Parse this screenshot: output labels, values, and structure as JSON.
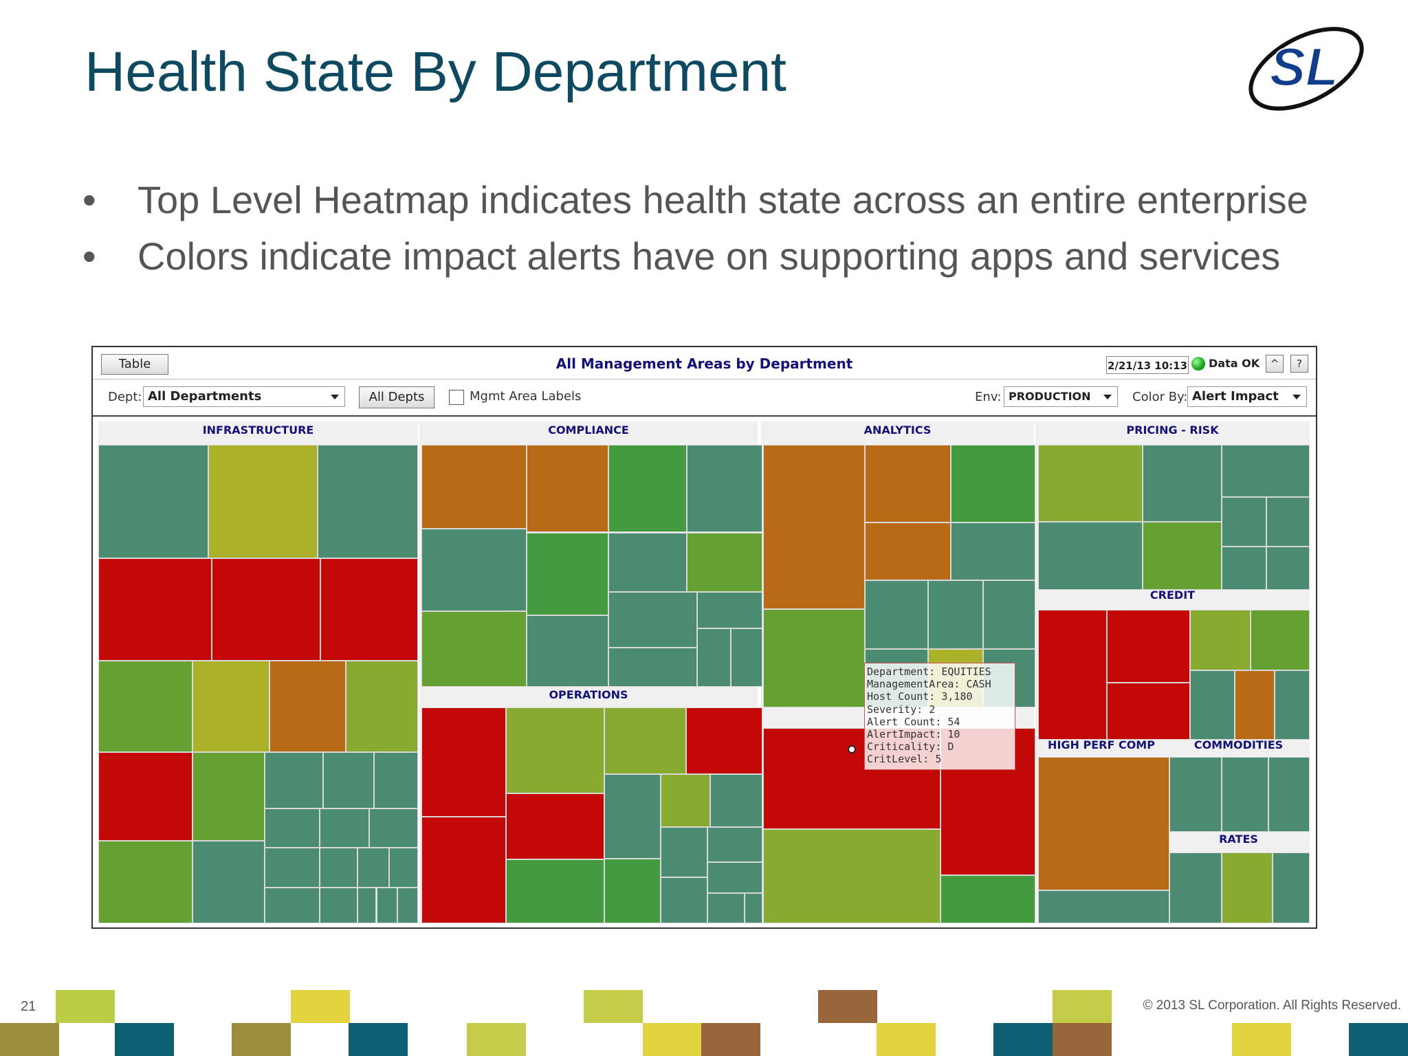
{
  "slide": {
    "title": "Health State By Department",
    "bullets": [
      "Top Level Heatmap indicates health state across an entire enterprise",
      "Colors indicate impact alerts have on supporting apps and services"
    ],
    "page_number": "21",
    "copyright": "© 2013 SL Corporation. All Rights Reserved.",
    "logo_text": "SL"
  },
  "app": {
    "table_button": "Table",
    "view_title": "All Management Areas by Department",
    "datetime": "2/21/13 10:13",
    "status_text": "Data OK",
    "up_button": "^",
    "help_button": "?",
    "dept_label": "Dept:",
    "dept_value": "All Departments",
    "all_depts_button": "All Depts",
    "mgmt_labels_checkbox": "Mgmt Area Labels",
    "env_label": "Env:",
    "env_value": "PRODUCTION",
    "colorby_label": "Color By:",
    "colorby_value": "Alert Impact"
  },
  "colors": {
    "red": "#c40707",
    "orange": "#b86a17",
    "yellow": "#abb22a",
    "lime": "#88aa30",
    "green": "#65a132",
    "bgreen": "#449a3e",
    "teal": "#4a8b72",
    "title": "#0d4a62",
    "header_text": "#12127a"
  },
  "departments": {
    "infrastructure": "INFRASTRUCTURE",
    "compliance": "COMPLIANCE",
    "analytics": "ANALYTICS",
    "pricing_risk": "PRICING - RISK",
    "operations": "OPERATIONS",
    "credit": "CREDIT",
    "high_perf_comp": "HIGH PERF COMP",
    "commodities": "COMMODITIES",
    "rates": "RATES"
  },
  "tooltip": {
    "lines": [
      "Department: EQUITIES",
      "ManagementArea: CASH",
      "Host Count: 3,180",
      "Severity: 2",
      "Alert Count: 54",
      "AlertImpact: 10",
      "Criticality: D",
      "CritLevel: 5"
    ]
  }
}
